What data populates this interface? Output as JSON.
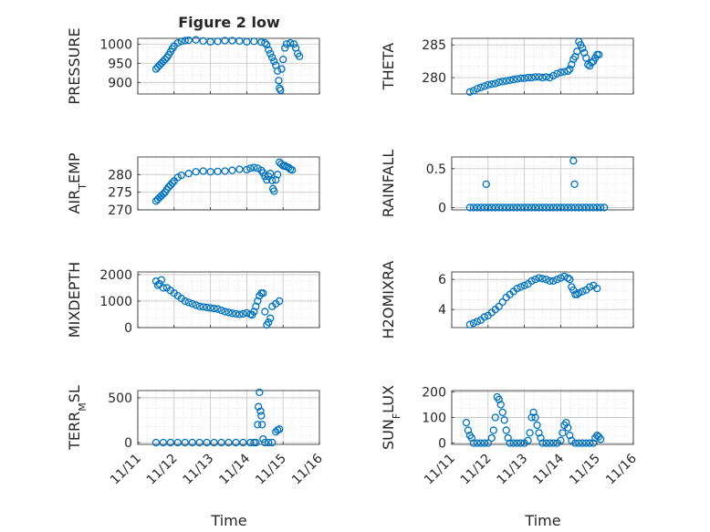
{
  "figure": {
    "title": "Figure 2 low",
    "x_axis_label": "Time",
    "x_tick_labels": [
      "11/11",
      "11/12",
      "11/13",
      "11/14",
      "11/15",
      "11/16"
    ]
  },
  "colors": {
    "marker": "#0072BD",
    "grid": "#c8c8c8",
    "axis": "#262626"
  },
  "chart_data": [
    {
      "type": "scatter",
      "ylabel": "PRESSURE",
      "xlim": [
        0,
        5
      ],
      "ylim": [
        870,
        1015
      ],
      "yticks": [
        900,
        950,
        1000
      ],
      "grid": true,
      "points": [
        [
          0.5,
          935
        ],
        [
          0.55,
          940
        ],
        [
          0.6,
          945
        ],
        [
          0.65,
          950
        ],
        [
          0.7,
          955
        ],
        [
          0.75,
          960
        ],
        [
          0.8,
          965
        ],
        [
          0.85,
          972
        ],
        [
          0.9,
          980
        ],
        [
          0.95,
          988
        ],
        [
          1.0,
          995
        ],
        [
          1.1,
          1003
        ],
        [
          1.2,
          1007
        ],
        [
          1.3,
          1009
        ],
        [
          1.4,
          1010
        ],
        [
          1.6,
          1011
        ],
        [
          1.8,
          1008
        ],
        [
          2.0,
          1006
        ],
        [
          2.2,
          1007
        ],
        [
          2.4,
          1009
        ],
        [
          2.6,
          1009
        ],
        [
          2.8,
          1008
        ],
        [
          3.0,
          1006
        ],
        [
          3.2,
          1007
        ],
        [
          3.4,
          1005
        ],
        [
          3.5,
          1003
        ],
        [
          3.55,
          998
        ],
        [
          3.6,
          985
        ],
        [
          3.65,
          975
        ],
        [
          3.7,
          965
        ],
        [
          3.75,
          955
        ],
        [
          3.8,
          945
        ],
        [
          3.85,
          930
        ],
        [
          3.88,
          905
        ],
        [
          3.9,
          885
        ],
        [
          3.93,
          880
        ],
        [
          3.96,
          935
        ],
        [
          4.0,
          960
        ],
        [
          4.05,
          990
        ],
        [
          4.1,
          1000
        ],
        [
          4.2,
          1003
        ],
        [
          4.3,
          1000
        ],
        [
          4.35,
          990
        ],
        [
          4.4,
          975
        ],
        [
          4.45,
          968
        ]
      ]
    },
    {
      "type": "scatter",
      "ylabel": "THETA",
      "xlim": [
        0,
        5
      ],
      "ylim": [
        277.5,
        286
      ],
      "yticks": [
        280,
        285
      ],
      "grid": true,
      "points": [
        [
          0.5,
          277.8
        ],
        [
          0.6,
          278
        ],
        [
          0.7,
          278.3
        ],
        [
          0.8,
          278.5
        ],
        [
          0.9,
          278.7
        ],
        [
          1.0,
          278.9
        ],
        [
          1.1,
          279
        ],
        [
          1.2,
          279.1
        ],
        [
          1.3,
          279.3
        ],
        [
          1.4,
          279.4
        ],
        [
          1.5,
          279.5
        ],
        [
          1.6,
          279.6
        ],
        [
          1.7,
          279.7
        ],
        [
          1.8,
          279.8
        ],
        [
          1.9,
          279.9
        ],
        [
          2.0,
          279.9
        ],
        [
          2.1,
          280
        ],
        [
          2.2,
          280
        ],
        [
          2.3,
          280.1
        ],
        [
          2.4,
          280.1
        ],
        [
          2.5,
          280
        ],
        [
          2.6,
          280.1
        ],
        [
          2.7,
          280
        ],
        [
          2.8,
          280.3
        ],
        [
          2.9,
          280.6
        ],
        [
          3.0,
          280.8
        ],
        [
          3.1,
          280.9
        ],
        [
          3.2,
          281
        ],
        [
          3.25,
          281.3
        ],
        [
          3.3,
          282
        ],
        [
          3.35,
          282.8
        ],
        [
          3.4,
          283.2
        ],
        [
          3.45,
          284
        ],
        [
          3.5,
          285.5
        ],
        [
          3.55,
          285
        ],
        [
          3.6,
          284.5
        ],
        [
          3.65,
          283.8
        ],
        [
          3.7,
          283
        ],
        [
          3.75,
          282
        ],
        [
          3.8,
          281.8
        ],
        [
          3.85,
          282.3
        ],
        [
          3.9,
          282.5
        ],
        [
          3.95,
          283
        ],
        [
          4.0,
          283.5
        ],
        [
          4.05,
          283.5
        ]
      ]
    },
    {
      "type": "scatter",
      "ylabel": "AIR_TEMP",
      "xlim": [
        0,
        5
      ],
      "ylim": [
        270,
        285
      ],
      "yticks": [
        270,
        275,
        280
      ],
      "grid": true,
      "points": [
        [
          0.5,
          272.5
        ],
        [
          0.55,
          273
        ],
        [
          0.6,
          273.5
        ],
        [
          0.65,
          274
        ],
        [
          0.7,
          274.5
        ],
        [
          0.75,
          275
        ],
        [
          0.8,
          275.8
        ],
        [
          0.85,
          276.5
        ],
        [
          0.9,
          277
        ],
        [
          0.95,
          277.6
        ],
        [
          1.0,
          278.2
        ],
        [
          1.1,
          279.2
        ],
        [
          1.2,
          279.8
        ],
        [
          1.4,
          280.3
        ],
        [
          1.6,
          280.8
        ],
        [
          1.8,
          281
        ],
        [
          2.0,
          280.8
        ],
        [
          2.2,
          280.9
        ],
        [
          2.4,
          281
        ],
        [
          2.6,
          281.2
        ],
        [
          2.8,
          281.5
        ],
        [
          3.0,
          281.4
        ],
        [
          3.1,
          281.8
        ],
        [
          3.2,
          282
        ],
        [
          3.3,
          281.8
        ],
        [
          3.4,
          281.2
        ],
        [
          3.45,
          280.5
        ],
        [
          3.5,
          279.5
        ],
        [
          3.55,
          278.5
        ],
        [
          3.6,
          279.5
        ],
        [
          3.65,
          280.3
        ],
        [
          3.7,
          278.3
        ],
        [
          3.72,
          276
        ],
        [
          3.75,
          275.3
        ],
        [
          3.8,
          278.5
        ],
        [
          3.85,
          280
        ],
        [
          3.9,
          283.5
        ],
        [
          3.95,
          283
        ],
        [
          4.0,
          282.5
        ],
        [
          4.05,
          282.5
        ],
        [
          4.1,
          282.2
        ],
        [
          4.15,
          282
        ],
        [
          4.2,
          281.5
        ],
        [
          4.25,
          281.3
        ]
      ]
    },
    {
      "type": "scatter",
      "ylabel": "RAINFALL",
      "xlim": [
        0,
        5
      ],
      "ylim": [
        -0.03,
        0.65
      ],
      "yticks": [
        0,
        0.5
      ],
      "grid": true,
      "points": [
        [
          0.5,
          0
        ],
        [
          0.6,
          0
        ],
        [
          0.7,
          0
        ],
        [
          0.8,
          0
        ],
        [
          0.9,
          0
        ],
        [
          0.95,
          0.3
        ],
        [
          1.0,
          0
        ],
        [
          1.1,
          0
        ],
        [
          1.2,
          0
        ],
        [
          1.3,
          0
        ],
        [
          1.4,
          0
        ],
        [
          1.5,
          0
        ],
        [
          1.6,
          0
        ],
        [
          1.7,
          0
        ],
        [
          1.8,
          0
        ],
        [
          1.9,
          0
        ],
        [
          2.0,
          0
        ],
        [
          2.1,
          0
        ],
        [
          2.2,
          0
        ],
        [
          2.3,
          0
        ],
        [
          2.4,
          0
        ],
        [
          2.5,
          0
        ],
        [
          2.6,
          0
        ],
        [
          2.7,
          0
        ],
        [
          2.8,
          0
        ],
        [
          2.9,
          0
        ],
        [
          3.0,
          0
        ],
        [
          3.1,
          0
        ],
        [
          3.2,
          0
        ],
        [
          3.3,
          0
        ],
        [
          3.35,
          0.6
        ],
        [
          3.38,
          0.3
        ],
        [
          3.4,
          0
        ],
        [
          3.5,
          0
        ],
        [
          3.6,
          0
        ],
        [
          3.7,
          0
        ],
        [
          3.8,
          0
        ],
        [
          3.9,
          0
        ],
        [
          4.0,
          0
        ],
        [
          4.1,
          0
        ],
        [
          4.2,
          0
        ]
      ]
    },
    {
      "type": "scatter",
      "ylabel": "MIXDEPTH",
      "xlim": [
        0,
        5
      ],
      "ylim": [
        0,
        2100
      ],
      "yticks": [
        0,
        1000,
        2000
      ],
      "grid": true,
      "points": [
        [
          0.5,
          1750
        ],
        [
          0.55,
          1600
        ],
        [
          0.6,
          1650
        ],
        [
          0.65,
          1800
        ],
        [
          0.7,
          1500
        ],
        [
          0.8,
          1500
        ],
        [
          0.9,
          1400
        ],
        [
          1.0,
          1300
        ],
        [
          1.1,
          1200
        ],
        [
          1.2,
          1100
        ],
        [
          1.3,
          1000
        ],
        [
          1.4,
          950
        ],
        [
          1.5,
          900
        ],
        [
          1.6,
          850
        ],
        [
          1.7,
          800
        ],
        [
          1.8,
          780
        ],
        [
          1.9,
          760
        ],
        [
          2.0,
          740
        ],
        [
          2.1,
          720
        ],
        [
          2.2,
          700
        ],
        [
          2.3,
          650
        ],
        [
          2.4,
          600
        ],
        [
          2.5,
          570
        ],
        [
          2.6,
          540
        ],
        [
          2.7,
          520
        ],
        [
          2.8,
          500
        ],
        [
          2.9,
          520
        ],
        [
          3.0,
          550
        ],
        [
          3.1,
          500
        ],
        [
          3.15,
          480
        ],
        [
          3.2,
          600
        ],
        [
          3.25,
          800
        ],
        [
          3.3,
          1000
        ],
        [
          3.35,
          1200
        ],
        [
          3.4,
          1300
        ],
        [
          3.45,
          1300
        ],
        [
          3.5,
          600
        ],
        [
          3.55,
          100
        ],
        [
          3.6,
          200
        ],
        [
          3.65,
          350
        ],
        [
          3.7,
          800
        ],
        [
          3.8,
          900
        ],
        [
          3.9,
          1000
        ]
      ]
    },
    {
      "type": "scatter",
      "ylabel": "H2OMIXRA",
      "xlim": [
        0,
        5
      ],
      "ylim": [
        2.8,
        6.5
      ],
      "yticks": [
        4,
        6
      ],
      "grid": true,
      "points": [
        [
          0.5,
          3
        ],
        [
          0.6,
          3.1
        ],
        [
          0.7,
          3.2
        ],
        [
          0.8,
          3.3
        ],
        [
          0.9,
          3.5
        ],
        [
          1.0,
          3.6
        ],
        [
          1.1,
          3.8
        ],
        [
          1.2,
          4
        ],
        [
          1.3,
          4.2
        ],
        [
          1.4,
          4.5
        ],
        [
          1.5,
          4.8
        ],
        [
          1.6,
          5
        ],
        [
          1.7,
          5.2
        ],
        [
          1.8,
          5.4
        ],
        [
          1.9,
          5.5
        ],
        [
          2.0,
          5.6
        ],
        [
          2.1,
          5.7
        ],
        [
          2.2,
          5.9
        ],
        [
          2.3,
          6
        ],
        [
          2.4,
          6.1
        ],
        [
          2.5,
          6.05
        ],
        [
          2.6,
          6
        ],
        [
          2.7,
          5.9
        ],
        [
          2.8,
          5.9
        ],
        [
          2.9,
          6
        ],
        [
          3.0,
          6.1
        ],
        [
          3.1,
          6.2
        ],
        [
          3.2,
          6.1
        ],
        [
          3.25,
          6
        ],
        [
          3.3,
          5.5
        ],
        [
          3.35,
          5.3
        ],
        [
          3.4,
          5
        ],
        [
          3.45,
          5
        ],
        [
          3.5,
          5.1
        ],
        [
          3.6,
          5.2
        ],
        [
          3.7,
          5.3
        ],
        [
          3.8,
          5.5
        ],
        [
          3.9,
          5.6
        ],
        [
          4.0,
          5.4
        ]
      ]
    },
    {
      "type": "scatter",
      "ylabel": "TERR_MSL",
      "xlim": [
        0,
        5
      ],
      "ylim": [
        -20,
        580
      ],
      "yticks": [
        0,
        500
      ],
      "grid": true,
      "points": [
        [
          0.5,
          0
        ],
        [
          0.7,
          0
        ],
        [
          0.9,
          0
        ],
        [
          1.1,
          0
        ],
        [
          1.3,
          0
        ],
        [
          1.5,
          0
        ],
        [
          1.7,
          0
        ],
        [
          1.9,
          0
        ],
        [
          2.1,
          0
        ],
        [
          2.3,
          0
        ],
        [
          2.5,
          0
        ],
        [
          2.7,
          0
        ],
        [
          2.9,
          0
        ],
        [
          3.1,
          0
        ],
        [
          3.2,
          0
        ],
        [
          3.25,
          0
        ],
        [
          3.3,
          200
        ],
        [
          3.32,
          400
        ],
        [
          3.35,
          560
        ],
        [
          3.38,
          350
        ],
        [
          3.4,
          300
        ],
        [
          3.42,
          200
        ],
        [
          3.45,
          40
        ],
        [
          3.5,
          0
        ],
        [
          3.6,
          0
        ],
        [
          3.7,
          0
        ],
        [
          3.8,
          120
        ],
        [
          3.85,
          140
        ],
        [
          3.9,
          150
        ]
      ]
    },
    {
      "type": "scatter",
      "ylabel": "SUN_FLUX",
      "xlim": [
        0,
        5
      ],
      "ylim": [
        -5,
        205
      ],
      "yticks": [
        0,
        100,
        200
      ],
      "grid": true,
      "points": [
        [
          0.4,
          80
        ],
        [
          0.45,
          50
        ],
        [
          0.5,
          30
        ],
        [
          0.55,
          20
        ],
        [
          0.6,
          0
        ],
        [
          0.7,
          0
        ],
        [
          0.8,
          0
        ],
        [
          0.9,
          0
        ],
        [
          1.0,
          0
        ],
        [
          1.1,
          20
        ],
        [
          1.15,
          50
        ],
        [
          1.2,
          100
        ],
        [
          1.25,
          180
        ],
        [
          1.3,
          170
        ],
        [
          1.35,
          150
        ],
        [
          1.4,
          120
        ],
        [
          1.45,
          90
        ],
        [
          1.5,
          50
        ],
        [
          1.55,
          20
        ],
        [
          1.6,
          0
        ],
        [
          1.7,
          0
        ],
        [
          1.8,
          0
        ],
        [
          1.9,
          0
        ],
        [
          2.0,
          0
        ],
        [
          2.1,
          10
        ],
        [
          2.15,
          40
        ],
        [
          2.2,
          100
        ],
        [
          2.25,
          120
        ],
        [
          2.3,
          100
        ],
        [
          2.35,
          70
        ],
        [
          2.4,
          40
        ],
        [
          2.45,
          20
        ],
        [
          2.5,
          0
        ],
        [
          2.6,
          0
        ],
        [
          2.7,
          0
        ],
        [
          2.8,
          0
        ],
        [
          2.9,
          0
        ],
        [
          3.0,
          10
        ],
        [
          3.05,
          40
        ],
        [
          3.1,
          70
        ],
        [
          3.15,
          80
        ],
        [
          3.2,
          60
        ],
        [
          3.25,
          30
        ],
        [
          3.3,
          10
        ],
        [
          3.4,
          0
        ],
        [
          3.5,
          0
        ],
        [
          3.6,
          0
        ],
        [
          3.7,
          0
        ],
        [
          3.8,
          0
        ],
        [
          3.9,
          0
        ],
        [
          3.95,
          20
        ],
        [
          4.0,
          30
        ],
        [
          4.05,
          25
        ],
        [
          4.1,
          15
        ]
      ]
    }
  ]
}
